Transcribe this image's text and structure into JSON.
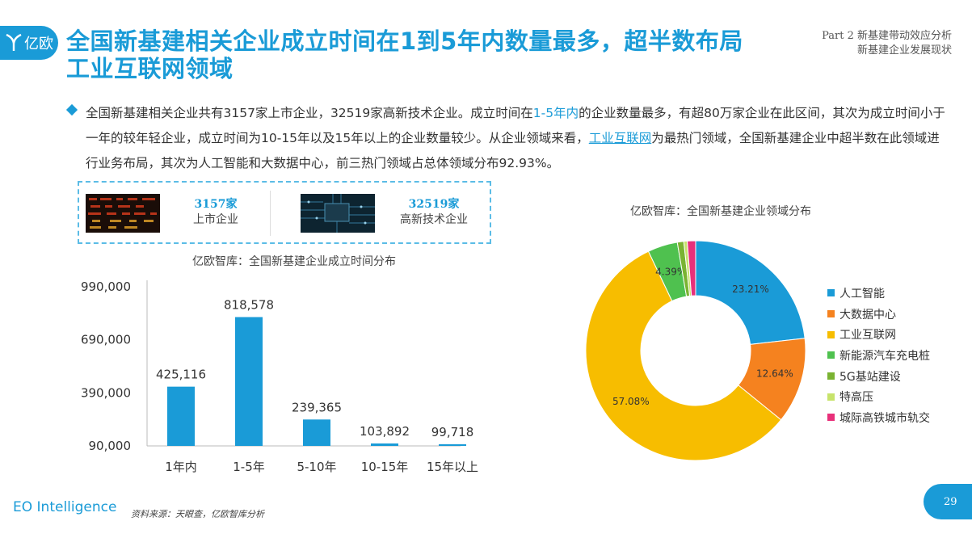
{
  "header": {
    "logo_text": "亿欧",
    "title": "全国新基建相关企业成立时间在1到5年内数量最多，超半数布局工业互联网领域",
    "part_line1": "Part 2 新基建带动效应分析",
    "part_line2": "新基建企业发展现状"
  },
  "paragraph": {
    "s1": "全国新基建相关企业共有3157家上市企业，32519家高新技术企业。成立时间在",
    "hl1": "1-5年内",
    "s2": "的企业数量最多，有超80万家企业在此区间，其次为成立时间小于一年的较年轻企业，成立时间为10-15年以及15年以上的企业数量较少。从企业领域来看，",
    "hl2": "工业互联网",
    "s3": "为最热门领域，全国新基建企业中超半数在此领域进行业务布局，其次为人工智能和大数据中心，前三热门领域占总体领域分布92.93%。"
  },
  "stats": [
    {
      "number": "3157家",
      "label": "上市企业",
      "image": "stock-board-photo"
    },
    {
      "number": "32519家",
      "label": "高新技术企业",
      "image": "circuit-board-photo"
    }
  ],
  "colors": {
    "accent": "#1a9bd7",
    "bar": "#1a9bd7"
  },
  "chart_data": [
    {
      "type": "bar",
      "title": "亿欧智库：全国新基建企业成立时间分布",
      "categories": [
        "1年内",
        "1-5年",
        "5-10年",
        "10-15年",
        "15年以上"
      ],
      "values": [
        425116,
        818578,
        239365,
        103892,
        99718
      ],
      "value_labels": [
        "425,116",
        "818,578",
        "239,365",
        "103,892",
        "99,718"
      ],
      "yticks": [
        "990,000",
        "690,000",
        "390,000",
        "90,000"
      ],
      "ytick_values": [
        990000,
        690000,
        390000,
        90000
      ],
      "ylim": [
        90000,
        990000
      ]
    },
    {
      "type": "pie",
      "title": "亿欧智库：全国新基建企业领域分布",
      "labels": [
        "人工智能",
        "大数据中心",
        "工业互联网",
        "新能源汽车充电桩",
        "5G基站建设",
        "特高压",
        "城际高铁城市轨交"
      ],
      "values": [
        23.21,
        12.64,
        57.08,
        4.39,
        0.95,
        0.5,
        1.23
      ],
      "slice_labels": [
        "23.21%",
        "12.64%",
        "57.08%",
        "4.39%",
        "",
        "",
        ""
      ],
      "colors": [
        "#1a9bd7",
        "#f5821f",
        "#f7bd00",
        "#4fc14f",
        "#7ab332",
        "#c7e36b",
        "#e8307a"
      ],
      "legend_position": "right"
    }
  ],
  "footer": {
    "brand": "EO Intelligence",
    "source": "资料来源：天眼查，亿欧智库分析",
    "page": "29"
  }
}
